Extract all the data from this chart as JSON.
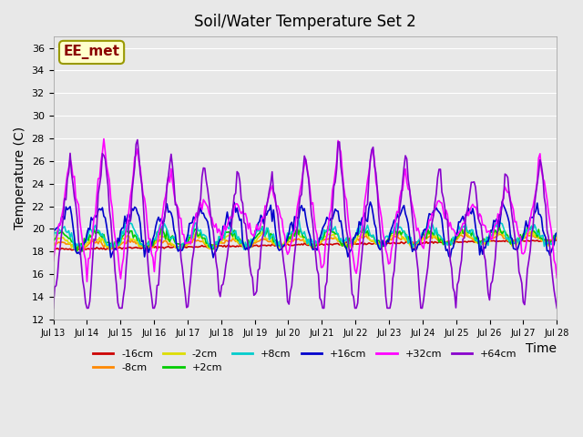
{
  "title": "Soil/Water Temperature Set 2",
  "xlabel": "Time",
  "ylabel": "Temperature (C)",
  "ylim": [
    12,
    37
  ],
  "yticks": [
    12,
    14,
    16,
    18,
    20,
    22,
    24,
    26,
    28,
    30,
    32,
    34,
    36
  ],
  "x_start": 13,
  "x_end": 28,
  "xtick_positions": [
    13,
    14,
    15,
    16,
    17,
    18,
    19,
    20,
    21,
    22,
    23,
    24,
    25,
    26,
    27,
    28
  ],
  "xtick_labels": [
    "Jul 13",
    "Jul 14",
    "Jul 15",
    "Jul 16",
    "Jul 17",
    "Jul 18",
    "Jul 19",
    "Jul 20",
    "Jul 21",
    "Jul 22",
    "Jul 23",
    "Jul 24",
    "Jul 25",
    "Jul 26",
    "Jul 27",
    "Jul 28"
  ],
  "watermark": "EE_met",
  "bg_color": "#e8e8e8",
  "legend_entries": [
    "-16cm",
    "-8cm",
    "-2cm",
    "+2cm",
    "+8cm",
    "+16cm",
    "+32cm",
    "+64cm"
  ],
  "legend_colors": [
    "#cc0000",
    "#ff8800",
    "#dddd00",
    "#00cc00",
    "#00cccc",
    "#0000cc",
    "#ff00ff",
    "#8800cc"
  ],
  "series_colors": {
    "-16cm": "#cc0000",
    "-8cm": "#ff8800",
    "-2cm": "#dddd00",
    "+2cm": "#00cc00",
    "+8cm": "#00cccc",
    "+16cm": "#0000cc",
    "+32cm": "#ff00ff",
    "+64cm": "#8800cc"
  },
  "n_points": 360,
  "t_start": 13.0,
  "t_end": 28.0
}
